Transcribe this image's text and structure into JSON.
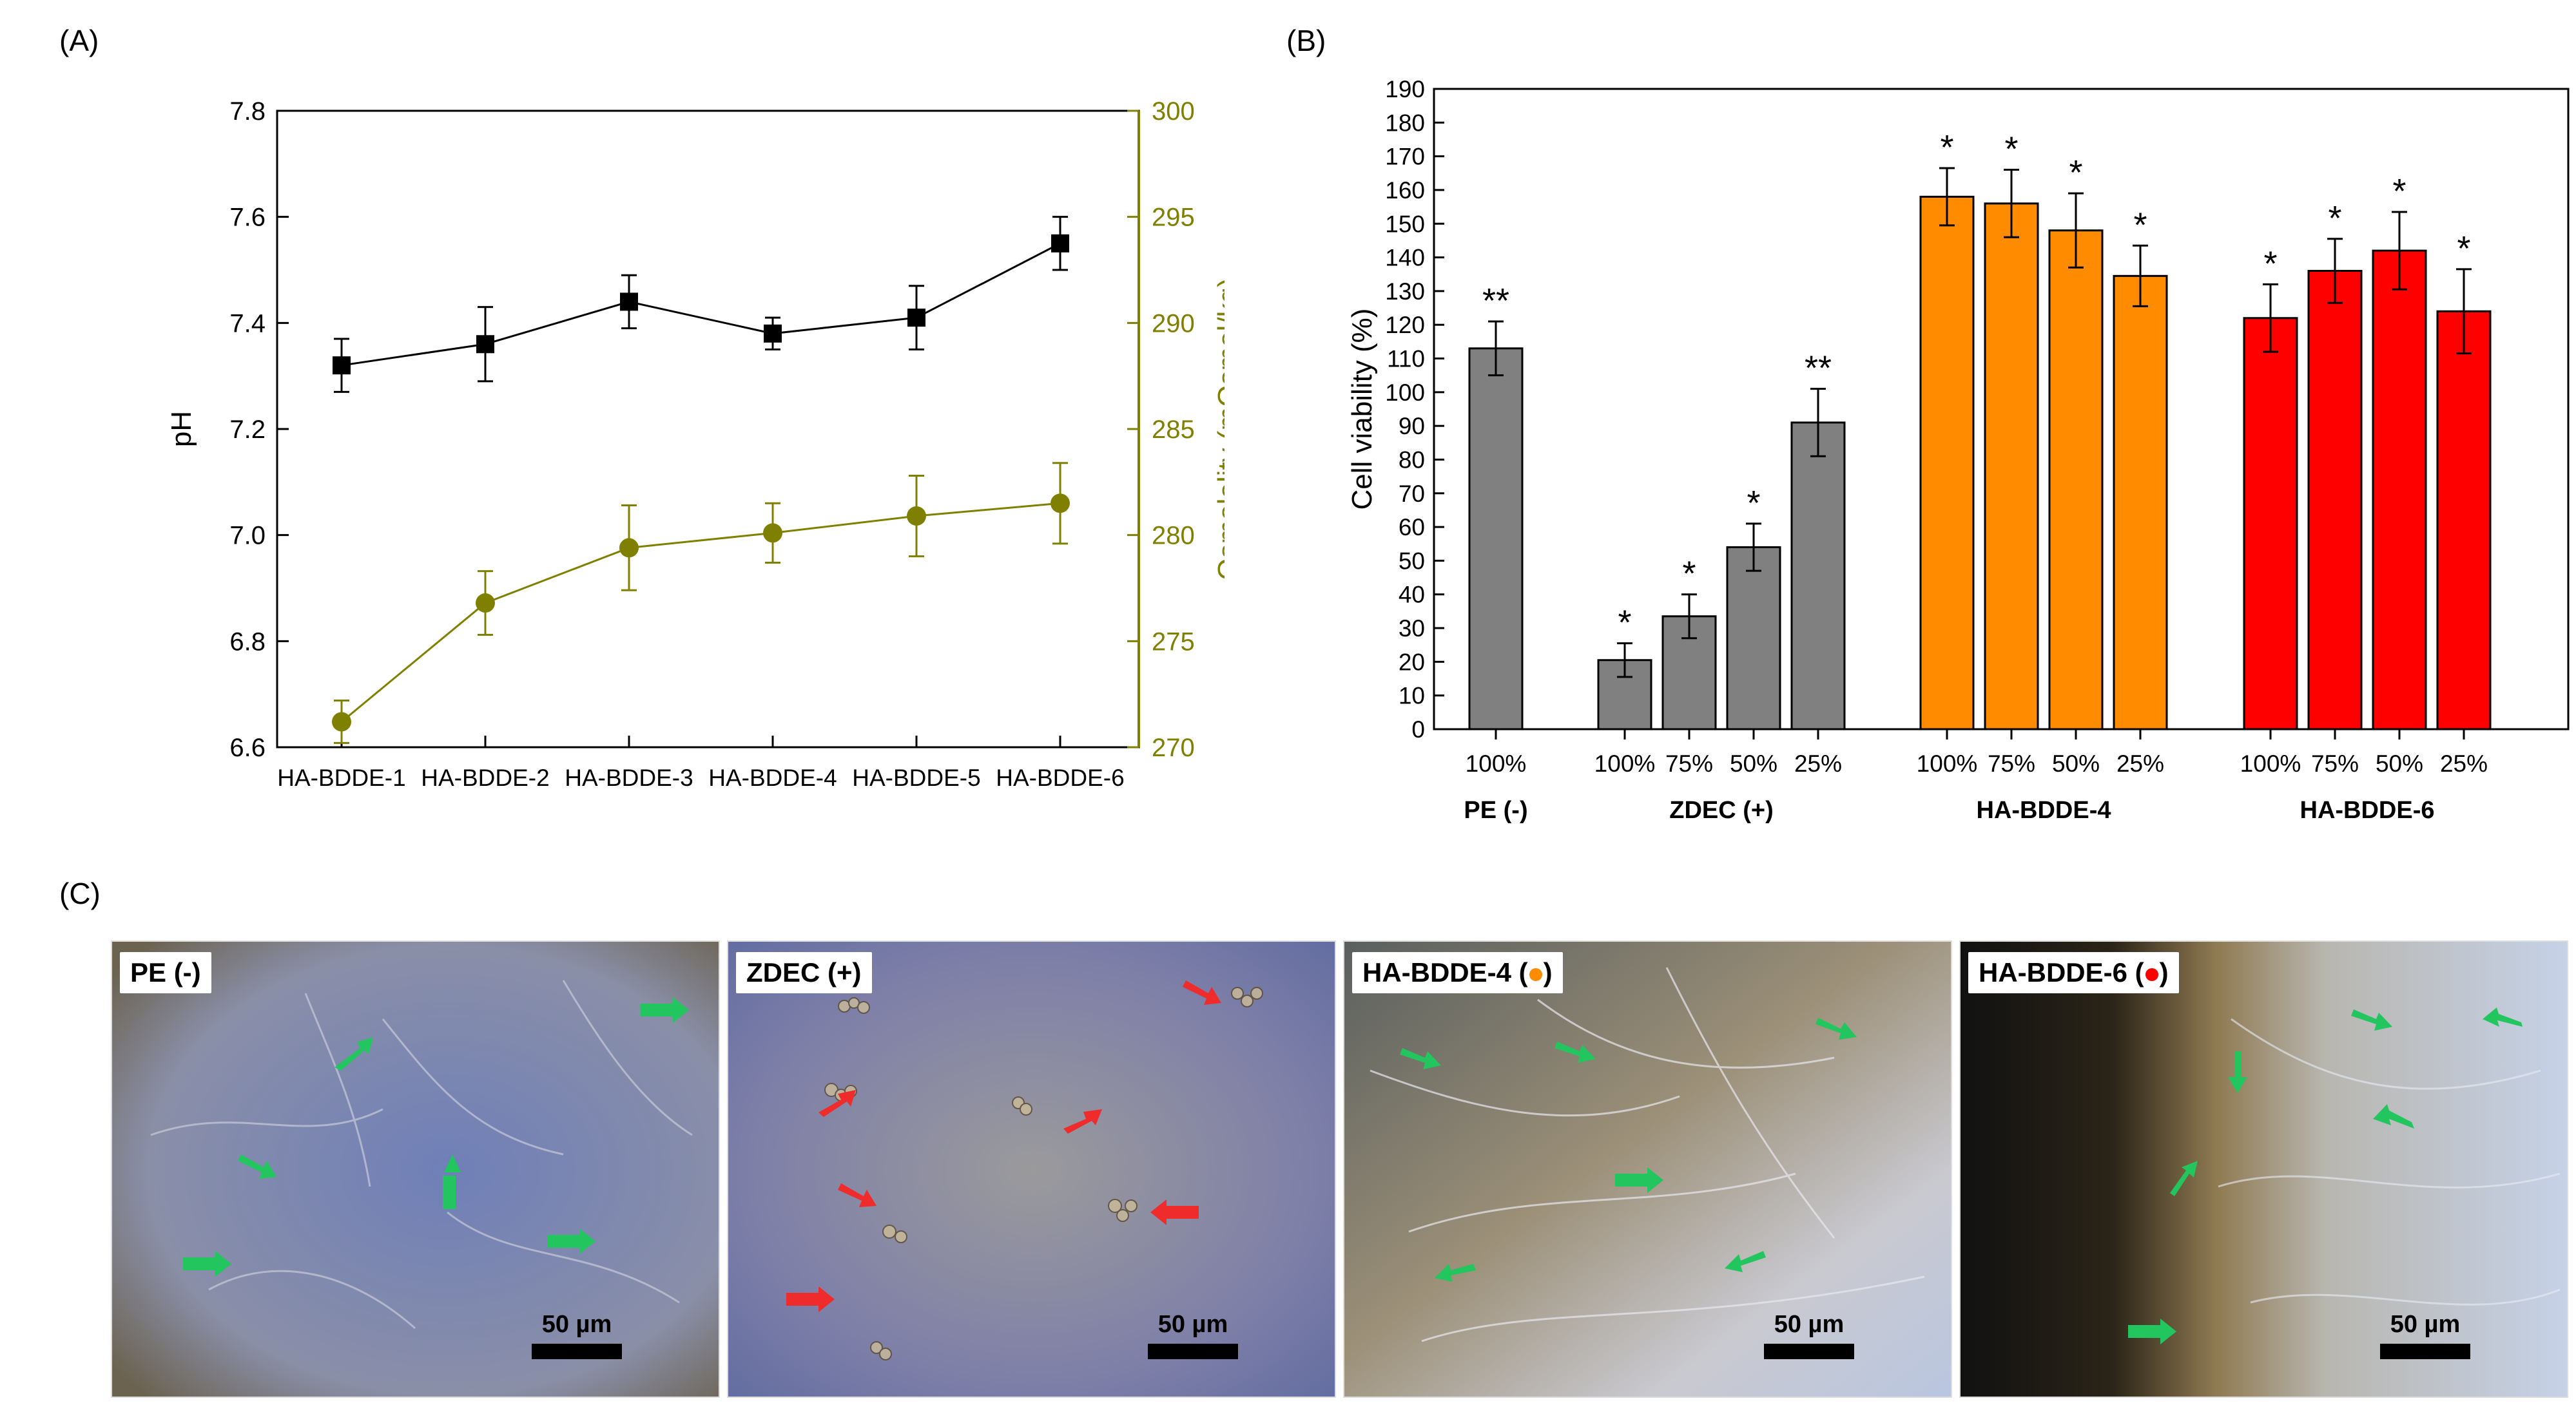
{
  "panels": {
    "a": "(A)",
    "b": "(B)",
    "c": "(C)"
  },
  "chart_data": [
    {
      "type": "line",
      "panel": "(A)",
      "categories": [
        "HA-BDDE-1",
        "HA-BDDE-2",
        "HA-BDDE-3",
        "HA-BDDE-4",
        "HA-BDDE-5",
        "HA-BDDE-6"
      ],
      "ylabel": "pH",
      "y2label": "Osmolality (mOsmol/kg)",
      "ylim": [
        6.6,
        7.8
      ],
      "y2lim": [
        270,
        300
      ],
      "yticks": [
        "6.6",
        "6.8",
        "7.0",
        "7.2",
        "7.4",
        "7.6",
        "7.8"
      ],
      "y2ticks": [
        "270",
        "275",
        "280",
        "285",
        "290",
        "295",
        "300"
      ],
      "series": [
        {
          "name": "pH",
          "axis": "left",
          "color": "#000000",
          "marker": "square",
          "values": [
            7.32,
            7.36,
            7.44,
            7.38,
            7.41,
            7.55
          ],
          "errors": [
            0.05,
            0.07,
            0.05,
            0.03,
            0.06,
            0.05
          ]
        },
        {
          "name": "Osmolality",
          "axis": "right",
          "color": "#808000",
          "marker": "circle",
          "values": [
            271.2,
            276.8,
            279.4,
            280.1,
            280.9,
            281.5
          ],
          "errors": [
            1.0,
            1.5,
            2.0,
            1.4,
            1.9,
            1.9
          ]
        }
      ]
    },
    {
      "type": "bar",
      "panel": "(B)",
      "ylabel": "Cell viability (%)",
      "ylim": [
        0,
        190
      ],
      "yticks": [
        "0",
        "10",
        "20",
        "30",
        "40",
        "50",
        "60",
        "70",
        "80",
        "90",
        "100",
        "110",
        "120",
        "130",
        "140",
        "150",
        "160",
        "170",
        "180",
        "190"
      ],
      "groups": [
        {
          "name": "PE (-)",
          "color": "#808080",
          "bars": [
            {
              "label": "100%",
              "value": 113,
              "error": 8,
              "sig": "**"
            }
          ]
        },
        {
          "name": "ZDEC (+)",
          "color": "#808080",
          "bars": [
            {
              "label": "100%",
              "value": 20.5,
              "error": 5,
              "sig": "*"
            },
            {
              "label": "75%",
              "value": 33.5,
              "error": 6.5,
              "sig": "*"
            },
            {
              "label": "50%",
              "value": 54,
              "error": 7,
              "sig": "*"
            },
            {
              "label": "25%",
              "value": 91,
              "error": 10,
              "sig": "**"
            }
          ]
        },
        {
          "name": "HA-BDDE-4",
          "color": "#FF8C00",
          "bars": [
            {
              "label": "100%",
              "value": 158,
              "error": 8.5,
              "sig": "*"
            },
            {
              "label": "75%",
              "value": 156,
              "error": 10,
              "sig": "*"
            },
            {
              "label": "50%",
              "value": 148,
              "error": 11,
              "sig": "*"
            },
            {
              "label": "25%",
              "value": 134.5,
              "error": 9,
              "sig": "*"
            }
          ]
        },
        {
          "name": "HA-BDDE-6",
          "color": "#FF0000",
          "bars": [
            {
              "label": "100%",
              "value": 122,
              "error": 10,
              "sig": "*"
            },
            {
              "label": "75%",
              "value": 136,
              "error": 9.5,
              "sig": "*"
            },
            {
              "label": "50%",
              "value": 142,
              "error": 11.5,
              "sig": "*"
            },
            {
              "label": "25%",
              "value": 124,
              "error": 12.5,
              "sig": "*"
            }
          ]
        }
      ]
    }
  ],
  "micrographs": [
    {
      "label": "PE (-)",
      "scale": "50 µm",
      "marker_color": ""
    },
    {
      "label": "ZDEC (+)",
      "scale": "50 µm",
      "marker_color": ""
    },
    {
      "label": "HA-BDDE-4 (",
      "label_end": ")",
      "scale": "50 µm",
      "marker_color": "#FF8C00"
    },
    {
      "label": "HA-BDDE-6 (",
      "label_end": ")",
      "scale": "50 µm",
      "marker_color": "#FF0000"
    }
  ]
}
